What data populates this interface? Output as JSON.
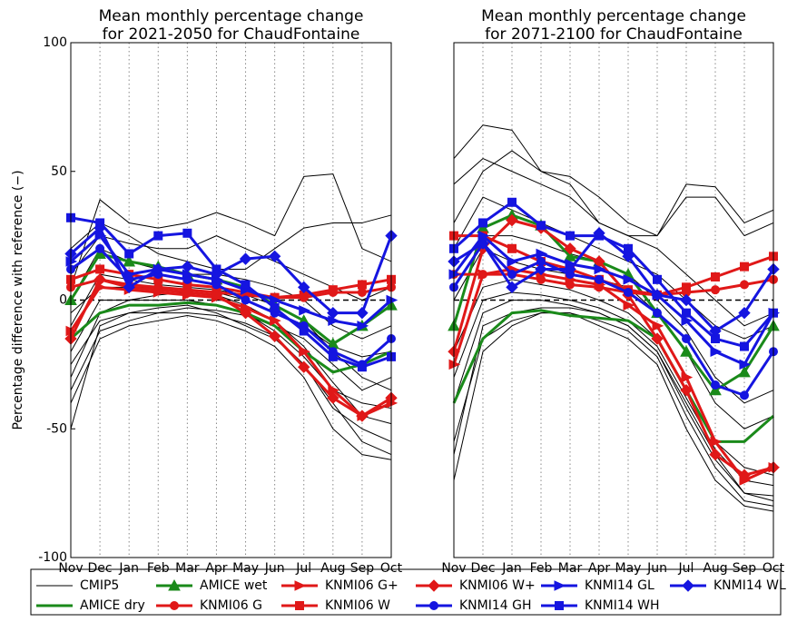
{
  "chart_data": [
    {
      "type": "line",
      "title": "Mean monthly percentage change",
      "subtitle": "for 2021-2050 for ChaudFontaine",
      "y_label": "Percentage difference with reference (−)",
      "categories": [
        "Nov",
        "Dec",
        "Jan",
        "Feb",
        "Mar",
        "Apr",
        "May",
        "Jun",
        "Jul",
        "Aug",
        "Sep",
        "Oct"
      ],
      "ylim": [
        -100,
        100
      ],
      "yticks": [
        -100,
        -50,
        0,
        50,
        100
      ],
      "grid": true,
      "series": [
        {
          "name": "CMIP5",
          "color": "#000000",
          "marker": "none",
          "members": [
            [
              -50,
              -10,
              -5,
              -3,
              -2,
              -5,
              -10,
              -15,
              -25,
              -40,
              -55,
              -60
            ],
            [
              -30,
              -5,
              0,
              2,
              3,
              2,
              -2,
              -8,
              -18,
              -32,
              -45,
              -48
            ],
            [
              -10,
              10,
              8,
              6,
              5,
              4,
              2,
              -2,
              -8,
              -20,
              -30,
              -35
            ],
            [
              5,
              39,
              30,
              28,
              30,
              34,
              30,
              25,
              48,
              49,
              20,
              15
            ],
            [
              0,
              20,
              15,
              12,
              10,
              10,
              8,
              5,
              0,
              -10,
              -15,
              -10
            ],
            [
              -20,
              0,
              0,
              0,
              0,
              -2,
              -5,
              -12,
              -22,
              -35,
              -40,
              -42
            ],
            [
              -40,
              -15,
              -10,
              -8,
              -6,
              -8,
              -12,
              -18,
              -30,
              -50,
              -60,
              -62
            ],
            [
              10,
              25,
              22,
              20,
              20,
              25,
              20,
              15,
              10,
              5,
              0,
              5
            ],
            [
              -25,
              -8,
              -5,
              -5,
              -3,
              -4,
              -6,
              -10,
              -15,
              -25,
              -35,
              -30
            ],
            [
              -5,
              5,
              5,
              5,
              4,
              3,
              0,
              -5,
              -10,
              -18,
              -22,
              -20
            ],
            [
              -35,
              -12,
              -8,
              -5,
              -5,
              -6,
              -9,
              -14,
              -25,
              -42,
              -50,
              -55
            ],
            [
              20,
              30,
              25,
              18,
              15,
              12,
              12,
              20,
              28,
              30,
              30,
              33
            ]
          ]
        },
        {
          "name": "AMICE dry",
          "color": "#1a8a1a",
          "marker": "none",
          "values": [
            -15,
            -5,
            -2,
            -2,
            -1,
            -2,
            -5,
            -10,
            -20,
            -28,
            -25,
            -20
          ]
        },
        {
          "name": "AMICE wet",
          "color": "#1a8a1a",
          "marker": "triangle",
          "values": [
            0,
            18,
            15,
            13,
            10,
            8,
            5,
            -2,
            -8,
            -17,
            -10,
            -2
          ]
        },
        {
          "name": "KNMI06 G",
          "color": "#e01818",
          "marker": "circle",
          "values": [
            5,
            8,
            6,
            5,
            4,
            3,
            2,
            1,
            1,
            3,
            3,
            5
          ]
        },
        {
          "name": "KNMI06 G+",
          "color": "#e01818",
          "marker": "arrow",
          "values": [
            -12,
            5,
            4,
            3,
            2,
            1,
            -3,
            -8,
            -20,
            -35,
            -45,
            -40
          ]
        },
        {
          "name": "KNMI06 W",
          "color": "#e01818",
          "marker": "square",
          "values": [
            8,
            12,
            10,
            8,
            6,
            5,
            3,
            1,
            2,
            4,
            6,
            8
          ]
        },
        {
          "name": "KNMI06 W+",
          "color": "#e01818",
          "marker": "diamond",
          "values": [
            -15,
            8,
            5,
            4,
            3,
            2,
            -5,
            -14,
            -26,
            -38,
            -45,
            -38
          ]
        },
        {
          "name": "KNMI14 GH",
          "color": "#1515e0",
          "marker": "circle",
          "values": [
            12,
            20,
            8,
            10,
            8,
            6,
            0,
            -5,
            -10,
            -20,
            -25,
            -15
          ]
        },
        {
          "name": "KNMI14 GL",
          "color": "#1515e0",
          "marker": "arrow",
          "values": [
            15,
            25,
            10,
            12,
            10,
            8,
            4,
            0,
            -4,
            -8,
            -10,
            0
          ]
        },
        {
          "name": "KNMI14 WH",
          "color": "#1515e0",
          "marker": "square",
          "values": [
            32,
            30,
            18,
            25,
            26,
            12,
            6,
            -3,
            -12,
            -22,
            -26,
            -22
          ]
        },
        {
          "name": "KNMI14 WL",
          "color": "#1515e0",
          "marker": "diamond",
          "values": [
            18,
            28,
            5,
            12,
            13,
            10,
            16,
            17,
            5,
            -5,
            -5,
            25
          ]
        }
      ]
    },
    {
      "type": "line",
      "title": "Mean monthly percentage change",
      "subtitle": "for 2071-2100 for ChaudFontaine",
      "categories": [
        "Nov",
        "Dec",
        "Jan",
        "Feb",
        "Mar",
        "Apr",
        "May",
        "Jun",
        "Jul",
        "Aug",
        "Sep",
        "Oct"
      ],
      "ylim": [
        -100,
        100
      ],
      "grid": true,
      "series": [
        {
          "name": "CMIP5",
          "color": "#000000",
          "marker": "none",
          "members": [
            [
              -70,
              -20,
              -10,
              -5,
              -5,
              -10,
              -15,
              -25,
              -50,
              -70,
              -80,
              -82
            ],
            [
              -40,
              -5,
              0,
              0,
              -2,
              -5,
              -10,
              -20,
              -40,
              -60,
              -75,
              -78
            ],
            [
              0,
              20,
              15,
              12,
              10,
              8,
              5,
              -5,
              -20,
              -40,
              -50,
              -45
            ],
            [
              55,
              68,
              66,
              50,
              48,
              40,
              30,
              25,
              45,
              44,
              30,
              35
            ],
            [
              30,
              50,
              58,
              50,
              45,
              30,
              25,
              20,
              10,
              0,
              -10,
              -5
            ],
            [
              -20,
              5,
              8,
              6,
              4,
              0,
              -5,
              -15,
              -35,
              -55,
              -65,
              -68
            ],
            [
              -55,
              -15,
              -8,
              -5,
              -5,
              -8,
              -12,
              -22,
              -45,
              -65,
              -78,
              -80
            ],
            [
              20,
              40,
              35,
              30,
              25,
              20,
              15,
              10,
              0,
              -10,
              -15,
              -10
            ],
            [
              -30,
              0,
              3,
              2,
              0,
              -3,
              -8,
              -18,
              -38,
              -58,
              -70,
              -72
            ],
            [
              10,
              25,
              25,
              22,
              18,
              15,
              10,
              0,
              -12,
              -30,
              -40,
              -35
            ],
            [
              -60,
              -10,
              -5,
              -3,
              -3,
              -5,
              -10,
              -20,
              -42,
              -62,
              -75,
              -76
            ],
            [
              45,
              55,
              50,
              45,
              40,
              30,
              25,
              25,
              40,
              40,
              25,
              30
            ]
          ]
        },
        {
          "name": "AMICE dry",
          "color": "#1a8a1a",
          "marker": "none",
          "values": [
            -40,
            -15,
            -5,
            -4,
            -6,
            -7,
            -8,
            -15,
            -35,
            -55,
            -55,
            -45
          ]
        },
        {
          "name": "AMICE wet",
          "color": "#1a8a1a",
          "marker": "triangle",
          "values": [
            -10,
            28,
            33,
            29,
            17,
            15,
            10,
            -5,
            -20,
            -35,
            -28,
            -10
          ]
        },
        {
          "name": "KNMI06 G",
          "color": "#e01818",
          "marker": "circle",
          "values": [
            10,
            10,
            10,
            8,
            6,
            5,
            3,
            2,
            3,
            4,
            6,
            8
          ]
        },
        {
          "name": "KNMI06 G+",
          "color": "#e01818",
          "marker": "arrow",
          "values": [
            -25,
            10,
            12,
            10,
            8,
            6,
            -2,
            -10,
            -30,
            -55,
            -70,
            -65
          ]
        },
        {
          "name": "KNMI06 W",
          "color": "#e01818",
          "marker": "square",
          "values": [
            25,
            25,
            20,
            15,
            12,
            8,
            4,
            2,
            5,
            9,
            13,
            17
          ]
        },
        {
          "name": "KNMI06 W+",
          "color": "#e01818",
          "marker": "diamond",
          "values": [
            -20,
            20,
            31,
            28,
            20,
            15,
            2,
            -15,
            -35,
            -60,
            -68,
            -65
          ]
        },
        {
          "name": "KNMI14 GH",
          "color": "#1515e0",
          "marker": "circle",
          "values": [
            5,
            22,
            10,
            15,
            10,
            8,
            3,
            -5,
            -15,
            -33,
            -37,
            -20
          ]
        },
        {
          "name": "KNMI14 GL",
          "color": "#1515e0",
          "marker": "arrow",
          "values": [
            10,
            25,
            15,
            18,
            14,
            12,
            8,
            2,
            -8,
            -20,
            -25,
            -5
          ]
        },
        {
          "name": "KNMI14 WH",
          "color": "#1515e0",
          "marker": "square",
          "values": [
            20,
            30,
            38,
            29,
            25,
            25,
            20,
            8,
            -5,
            -15,
            -18,
            -5
          ]
        },
        {
          "name": "KNMI14 WL",
          "color": "#1515e0",
          "marker": "diamond",
          "values": [
            15,
            22,
            5,
            12,
            12,
            26,
            17,
            2,
            0,
            -12,
            -5,
            12
          ]
        }
      ]
    }
  ]
}
